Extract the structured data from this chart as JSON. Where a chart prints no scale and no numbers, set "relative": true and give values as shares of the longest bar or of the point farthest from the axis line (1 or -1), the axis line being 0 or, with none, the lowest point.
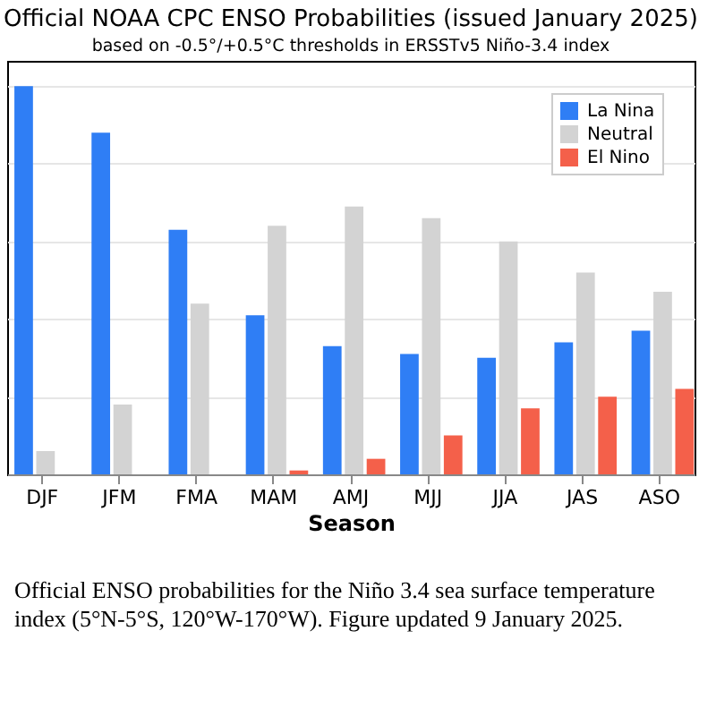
{
  "chart_data": {
    "type": "bar",
    "title": "Official NOAA CPC ENSO Probabilities (issued January 2025)",
    "subtitle": "based on -0.5°/+0.5°C thresholds in ERSSTv5 Niño-3.4 index",
    "xlabel": "Season",
    "categories": [
      "DJF",
      "JFM",
      "FMA",
      "MAM",
      "AMJ",
      "MJJ",
      "JJA",
      "JAS",
      "ASO"
    ],
    "relative": true,
    "grid": "y",
    "legend": "top right",
    "series": [
      {
        "name": "La Nina",
        "color": "#2f7ef5",
        "values": [
          1,
          0.88,
          0.63,
          0.41,
          0.33,
          0.31,
          0.3,
          0.34,
          0.37
        ]
      },
      {
        "name": "Neutral",
        "color": "#d3d3d3",
        "values": [
          0.06,
          0.18,
          0.44,
          0.64,
          0.69,
          0.66,
          0.6,
          0.52,
          0.47
        ]
      },
      {
        "name": "El Nino",
        "color": "#f4604a",
        "values": [
          0,
          0,
          0,
          0.01,
          0.04,
          0.1,
          0.17,
          0.2,
          0.22
        ]
      }
    ],
    "annotations": [
      "Official ENSO probabilities for the Niño 3.4 sea surface temperature index (5°N-5°S, 120°W-170°W). Figure updated 9 January 2025."
    ]
  }
}
